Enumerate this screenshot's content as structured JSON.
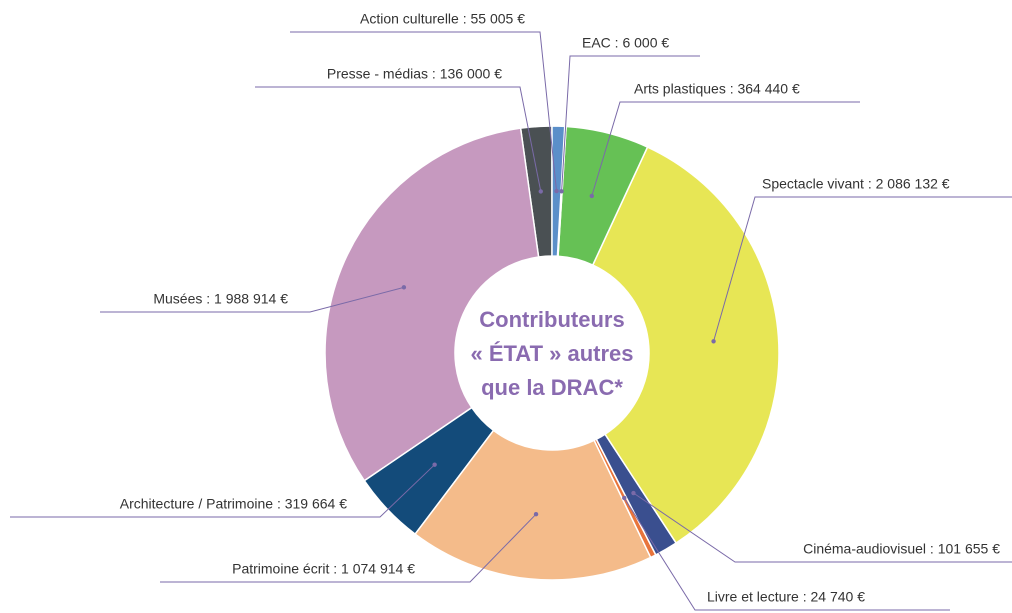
{
  "chart_data": {
    "type": "donut",
    "center_text": [
      "Contributeurs",
      "« ÉTAT » autres",
      "que la DRAC*"
    ],
    "values": [
      55005,
      6000,
      364440,
      2086132,
      101655,
      24740,
      1074914,
      319664,
      1988914,
      136000
    ],
    "value_labels": [
      "Action culturelle : 55 005 €",
      "EAC : 6 000 €",
      "Arts plastiques : 364 440 €",
      "Spectacle vivant : 2 086 132 €",
      "Cinéma-audiovisuel : 101 655 €",
      "Livre et lecture : 24 740 €",
      "Patrimoine écrit : 1 074 914 €",
      "Architecture / Patrimoine : 319 664 €",
      "Musées : 1 988 914 €",
      "Presse - médias : 136 000 €"
    ],
    "colors": [
      "#5b8fc9",
      "#4a6fa5",
      "#66c155",
      "#e7e655",
      "#3a4f8f",
      "#e8743b",
      "#f4bb8a",
      "#134b7a",
      "#c699bf",
      "#4a5053"
    ]
  }
}
